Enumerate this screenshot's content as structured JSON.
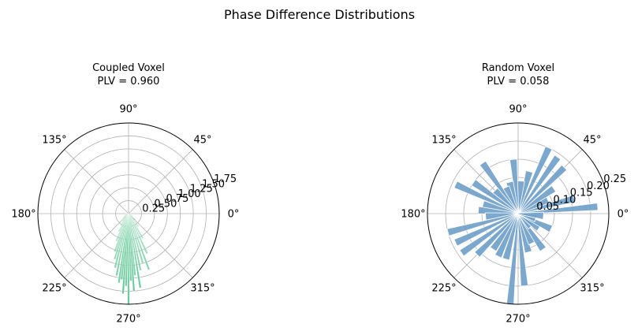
{
  "figure": {
    "title": "Phase Difference Distributions"
  },
  "chart_data": [
    {
      "type": "polar-bar",
      "title_line1": "Coupled Voxel",
      "title_line2": "PLV = 0.960",
      "angle_tick_labels": [
        "0°",
        "45°",
        "90°",
        "135°",
        "180°",
        "225°",
        "270°",
        "315°"
      ],
      "radial_tick_labels": [
        "0.25",
        "0.50",
        "0.75",
        "1.00",
        "1.25",
        "1.50",
        "1.75"
      ],
      "radial_ticks": [
        0.25,
        0.5,
        0.75,
        1.0,
        1.25,
        1.5,
        1.75
      ],
      "rmax": 1.75,
      "label_angle_deg": 22.5,
      "bar_color": "#66c99a",
      "bars": [
        {
          "theta": 186,
          "r": 0.05
        },
        {
          "theta": 195,
          "r": 0.06
        },
        {
          "theta": 204,
          "r": 0.08
        },
        {
          "theta": 213,
          "r": 0.1
        },
        {
          "theta": 222,
          "r": 0.14
        },
        {
          "theta": 231,
          "r": 0.2
        },
        {
          "theta": 237,
          "r": 0.28
        },
        {
          "theta": 242,
          "r": 0.4
        },
        {
          "theta": 246,
          "r": 0.58
        },
        {
          "theta": 250,
          "r": 0.78
        },
        {
          "theta": 253,
          "r": 0.92
        },
        {
          "theta": 256,
          "r": 1.08
        },
        {
          "theta": 259,
          "r": 1.22
        },
        {
          "theta": 262,
          "r": 1.35
        },
        {
          "theta": 264,
          "r": 1.28
        },
        {
          "theta": 266,
          "r": 1.55
        },
        {
          "theta": 268,
          "r": 1.4
        },
        {
          "theta": 270,
          "r": 1.75
        },
        {
          "theta": 272,
          "r": 1.3
        },
        {
          "theta": 274,
          "r": 1.5
        },
        {
          "theta": 276,
          "r": 1.2
        },
        {
          "theta": 279,
          "r": 1.45
        },
        {
          "theta": 282,
          "r": 1.12
        },
        {
          "theta": 286,
          "r": 1.0
        },
        {
          "theta": 290,
          "r": 1.15
        },
        {
          "theta": 295,
          "r": 0.85
        },
        {
          "theta": 300,
          "r": 0.55
        },
        {
          "theta": 307,
          "r": 0.32
        },
        {
          "theta": 315,
          "r": 0.18
        },
        {
          "theta": 324,
          "r": 0.1
        },
        {
          "theta": 333,
          "r": 0.06
        },
        {
          "theta": 342,
          "r": 0.04
        }
      ]
    },
    {
      "type": "polar-bar",
      "title_line1": "Random Voxel",
      "title_line2": "PLV = 0.058",
      "angle_tick_labels": [
        "0°",
        "45°",
        "90°",
        "135°",
        "180°",
        "225°",
        "270°",
        "315°"
      ],
      "radial_tick_labels": [
        "0.05",
        "0.10",
        "0.15",
        "0.20",
        "0.25"
      ],
      "radial_ticks": [
        0.05,
        0.1,
        0.15,
        0.2,
        0.25
      ],
      "rmax": 0.25,
      "label_angle_deg": 22.5,
      "bar_color": "#6f9ec9",
      "bars": [
        {
          "theta": 5,
          "r": 0.22
        },
        {
          "theta": 15,
          "r": 0.16
        },
        {
          "theta": 25,
          "r": 0.09
        },
        {
          "theta": 35,
          "r": 0.12
        },
        {
          "theta": 45,
          "r": 0.18
        },
        {
          "theta": 55,
          "r": 0.19
        },
        {
          "theta": 65,
          "r": 0.2
        },
        {
          "theta": 75,
          "r": 0.12
        },
        {
          "theta": 85,
          "r": 0.09
        },
        {
          "theta": 95,
          "r": 0.15
        },
        {
          "theta": 105,
          "r": 0.09
        },
        {
          "theta": 115,
          "r": 0.08
        },
        {
          "theta": 125,
          "r": 0.17
        },
        {
          "theta": 135,
          "r": 0.09
        },
        {
          "theta": 145,
          "r": 0.15
        },
        {
          "theta": 155,
          "r": 0.19
        },
        {
          "theta": 165,
          "r": 0.1
        },
        {
          "theta": 175,
          "r": 0.11
        },
        {
          "theta": 185,
          "r": 0.09
        },
        {
          "theta": 195,
          "r": 0.2
        },
        {
          "theta": 205,
          "r": 0.19
        },
        {
          "theta": 215,
          "r": 0.19
        },
        {
          "theta": 225,
          "r": 0.16
        },
        {
          "theta": 235,
          "r": 0.12
        },
        {
          "theta": 245,
          "r": 0.13
        },
        {
          "theta": 255,
          "r": 0.13
        },
        {
          "theta": 265,
          "r": 0.26
        },
        {
          "theta": 275,
          "r": 0.2
        },
        {
          "theta": 285,
          "r": 0.11
        },
        {
          "theta": 295,
          "r": 0.09
        },
        {
          "theta": 305,
          "r": 0.12
        },
        {
          "theta": 315,
          "r": 0.05
        },
        {
          "theta": 325,
          "r": 0.07
        },
        {
          "theta": 335,
          "r": 0.1
        },
        {
          "theta": 345,
          "r": 0.05
        },
        {
          "theta": 355,
          "r": 0.07
        }
      ]
    }
  ]
}
